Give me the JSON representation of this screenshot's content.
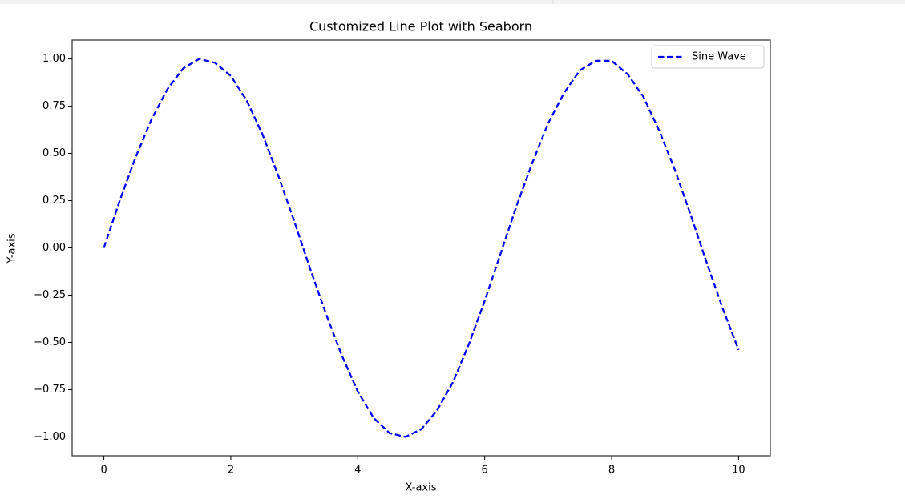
{
  "chart_data": {
    "type": "line",
    "title": "Customized Line Plot with Seaborn",
    "x_label": "X-axis",
    "y_label": "Y-axis",
    "x": [
      0,
      0.25,
      0.5,
      0.75,
      1,
      1.25,
      1.5,
      1.75,
      2,
      2.25,
      2.5,
      2.75,
      3,
      3.25,
      3.5,
      3.75,
      4,
      4.25,
      4.5,
      4.75,
      5,
      5.25,
      5.5,
      5.75,
      6,
      6.25,
      6.5,
      6.75,
      7,
      7.25,
      7.5,
      7.75,
      8,
      8.25,
      8.5,
      8.75,
      9,
      9.25,
      9.5,
      9.75,
      10
    ],
    "series": [
      {
        "name": "Sine Wave",
        "color": "#0000ff",
        "dashed": true,
        "values": [
          0,
          0.25,
          0.48,
          0.68,
          0.84,
          0.95,
          1.0,
          0.98,
          0.91,
          0.78,
          0.6,
          0.38,
          0.14,
          -0.11,
          -0.35,
          -0.57,
          -0.76,
          -0.9,
          -0.98,
          -1.0,
          -0.96,
          -0.86,
          -0.71,
          -0.51,
          -0.28,
          -0.03,
          0.22,
          0.45,
          0.66,
          0.82,
          0.94,
          0.99,
          0.99,
          0.92,
          0.8,
          0.62,
          0.41,
          0.17,
          -0.08,
          -0.32,
          -0.54
        ]
      }
    ],
    "xlim": [
      -0.5,
      10.5
    ],
    "ylim": [
      -1.1,
      1.1
    ],
    "xticks": [
      0,
      2,
      4,
      6,
      8,
      10
    ],
    "yticks": [
      {
        "value": -1,
        "label": "−1.00"
      },
      {
        "value": -0.75,
        "label": "−0.75"
      },
      {
        "value": -0.5,
        "label": "−0.50"
      },
      {
        "value": -0.25,
        "label": "−0.25"
      },
      {
        "value": 0,
        "label": "0.00"
      },
      {
        "value": 0.25,
        "label": "0.25"
      },
      {
        "value": 0.5,
        "label": "0.50"
      },
      {
        "value": 0.75,
        "label": "0.75"
      },
      {
        "value": 1,
        "label": "1.00"
      }
    ],
    "grid": false,
    "legend": "upper-right"
  }
}
